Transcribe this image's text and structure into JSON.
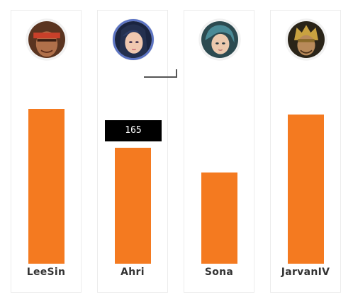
{
  "chart_data": {
    "type": "bar",
    "categories": [
      "LeeSin",
      "Ahri",
      "Sona",
      "JarvanIV"
    ],
    "values": [
      220,
      165,
      130,
      212
    ],
    "ylim": [
      0,
      300
    ],
    "grid": false,
    "bar_color": "#f47a20",
    "active_tooltip": {
      "category": "Ahri",
      "value": "165"
    }
  },
  "champions": [
    {
      "name": "LeeSin",
      "icon": "leesin-portrait-icon"
    },
    {
      "name": "Ahri",
      "icon": "ahri-portrait-icon"
    },
    {
      "name": "Sona",
      "icon": "sona-portrait-icon"
    },
    {
      "name": "JarvanIV",
      "icon": "jarvaniv-portrait-icon"
    }
  ],
  "colors": {
    "bar": "#f47a20",
    "tooltip_bg": "#000000",
    "selected_ring": "#5c74c4"
  }
}
